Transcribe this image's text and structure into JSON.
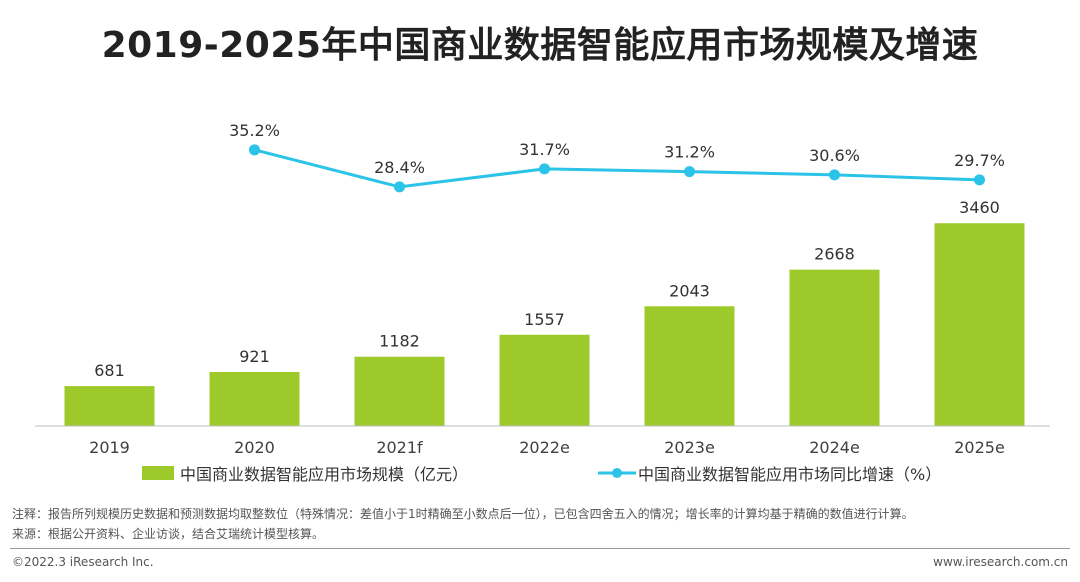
{
  "chart_data": {
    "type": "bar+line",
    "title": "2019-2025年中国商业数据智能应用市场规模及增速",
    "categories": [
      "2019",
      "2020",
      "2021f",
      "2022e",
      "2023e",
      "2024e",
      "2025e"
    ],
    "series": [
      {
        "name": "中国商业数据智能应用市场规模（亿元）",
        "type": "bar",
        "color": "#9DC92A",
        "values": [
          681,
          921,
          1182,
          1557,
          2043,
          2668,
          3460
        ],
        "labels": [
          "681",
          "921",
          "1182",
          "1557",
          "2043",
          "2668",
          "3460"
        ]
      },
      {
        "name": "中国商业数据智能应用市场同比增速（%）",
        "type": "line",
        "color": "#2BC4E8",
        "values": [
          null,
          35.2,
          28.4,
          31.7,
          31.2,
          30.6,
          29.7
        ],
        "labels": [
          "",
          "35.2%",
          "28.4%",
          "31.7%",
          "31.2%",
          "30.6%",
          "29.7%"
        ]
      }
    ],
    "ylim_bar": [
      0,
      4000
    ],
    "ylim_line": [
      0,
      40
    ]
  },
  "notes": {
    "note1": "注释：报告所列规模历史数据和预测数据均取整数位（特殊情况：差值小于1时精确至小数点后一位），已包含四舍五入的情况；增长率的计算均基于精确的数值进行计算。",
    "note2": "来源：根据公开资料、企业访谈，结合艾瑞统计模型核算。"
  },
  "footer": {
    "copyright": "©2022.3 iResearch Inc.",
    "url": "www.iresearch.com.cn"
  }
}
